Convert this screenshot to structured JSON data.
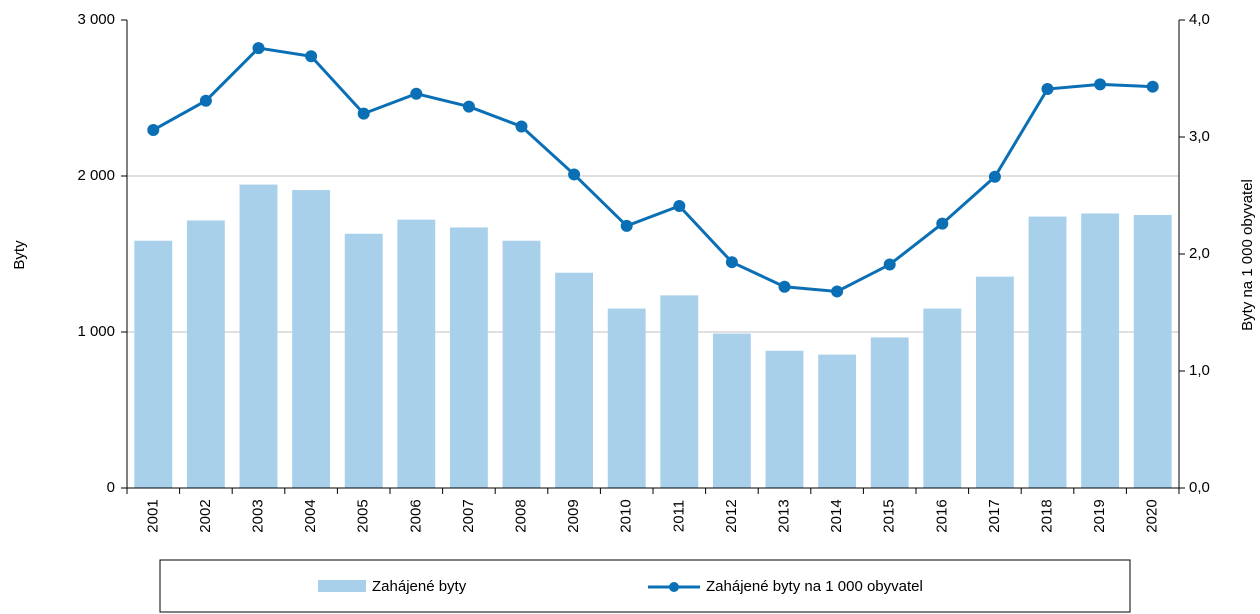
{
  "chart_data": {
    "type": "bar+line",
    "categories": [
      "2001",
      "2002",
      "2003",
      "2004",
      "2005",
      "2006",
      "2007",
      "2008",
      "2009",
      "2010",
      "2011",
      "2012",
      "2013",
      "2014",
      "2015",
      "2016",
      "2017",
      "2018",
      "2019",
      "2020"
    ],
    "series": [
      {
        "name": "Zahájené byty",
        "type": "bar",
        "color": "#a9d0ea",
        "values": [
          1585,
          1715,
          1945,
          1910,
          1630,
          1720,
          1670,
          1585,
          1380,
          1150,
          1235,
          990,
          880,
          855,
          965,
          1150,
          1355,
          1740,
          1760,
          1750
        ]
      },
      {
        "name": "Zahájené byty na 1 000 obyvatel",
        "type": "line",
        "axis": "y2",
        "color": "#0a6fb5",
        "values": [
          3.06,
          3.31,
          3.76,
          3.69,
          3.2,
          3.37,
          3.26,
          3.09,
          2.68,
          2.24,
          2.41,
          1.93,
          1.72,
          1.68,
          1.91,
          2.26,
          2.66,
          3.41,
          3.45,
          3.43
        ]
      }
    ],
    "ylabel": "Byty",
    "y2label": "Byty na 1 000 obyvatel",
    "ylim": [
      0,
      3000
    ],
    "yticks": [
      0,
      {
        "value": 1000,
        "label": "1 000"
      },
      {
        "value": 2000,
        "label": "2 000"
      },
      {
        "value": 3000,
        "label": "3 000"
      }
    ],
    "y2lim": [
      0,
      4
    ],
    "y2ticks": [
      {
        "value": 0,
        "label": "0,0"
      },
      {
        "value": 1,
        "label": "1,0"
      },
      {
        "value": 2,
        "label": "2,0"
      },
      {
        "value": 3,
        "label": "3,0"
      },
      {
        "value": 4,
        "label": "4,0"
      }
    ],
    "grid": true,
    "legend": "bottom"
  }
}
